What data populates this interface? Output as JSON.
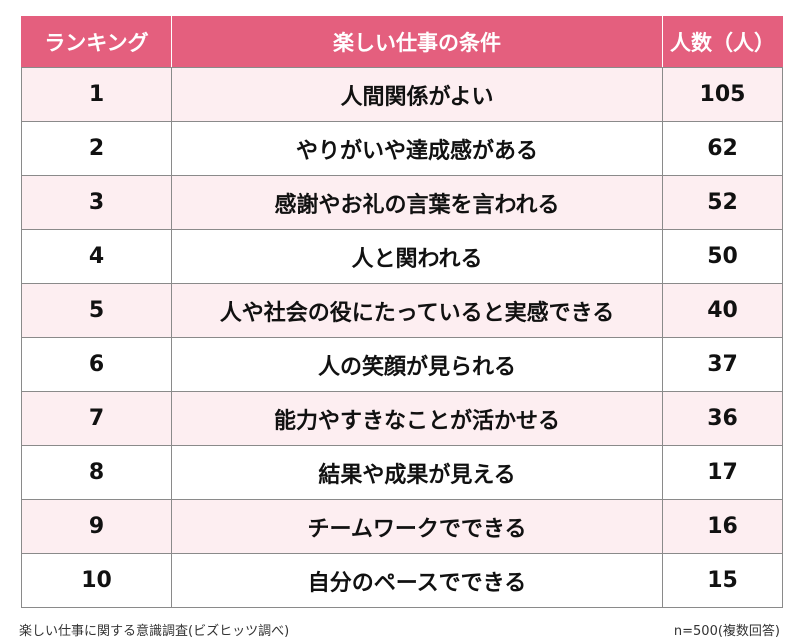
{
  "table": {
    "headers": {
      "rank": "ランキング",
      "condition": "楽しい仕事の条件",
      "count": "人数（人）"
    },
    "rows": [
      {
        "rank": "1",
        "condition": "人間関係がよい",
        "count": "105"
      },
      {
        "rank": "2",
        "condition": "やりがいや達成感がある",
        "count": "62"
      },
      {
        "rank": "3",
        "condition": "感謝やお礼の言葉を言われる",
        "count": "52"
      },
      {
        "rank": "4",
        "condition": "人と関われる",
        "count": "50"
      },
      {
        "rank": "5",
        "condition": "人や社会の役にたっていると実感できる",
        "count": "40"
      },
      {
        "rank": "6",
        "condition": "人の笑顔が見られる",
        "count": "37"
      },
      {
        "rank": "7",
        "condition": "能力やすきなことが活かせる",
        "count": "36"
      },
      {
        "rank": "8",
        "condition": "結果や成果が見える",
        "count": "17"
      },
      {
        "rank": "9",
        "condition": "チームワークでできる",
        "count": "16"
      },
      {
        "rank": "10",
        "condition": "自分のペースでできる",
        "count": "15"
      }
    ]
  },
  "footer": {
    "source": "楽しい仕事に関する意識調査(ビズヒッツ調べ)",
    "sample": "n=500(複数回答)"
  },
  "colors": {
    "header_bg": "#e45f7e",
    "row_alt_bg": "#fdeef1"
  }
}
